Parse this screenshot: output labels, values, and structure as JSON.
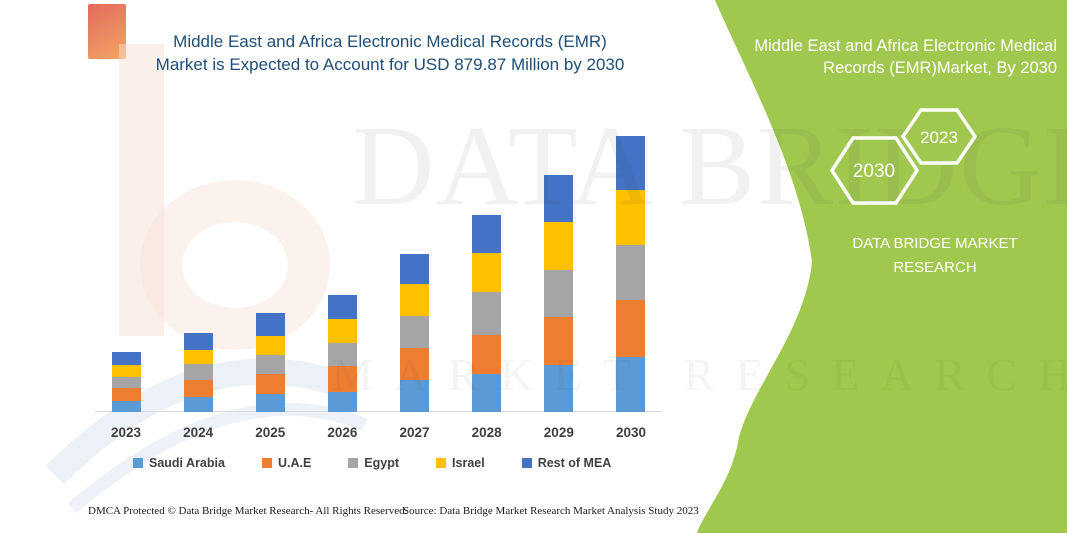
{
  "chart": {
    "title_line1": "Middle East and Africa Electronic Medical Records (EMR)",
    "title_line2": "Market is Expected to Account for USD 879.87 Million by 2030",
    "title_color": "#1F4E79"
  },
  "chart_data": {
    "type": "bar",
    "stacked": true,
    "title": "Middle East and Africa Electronic Medical Records (EMR) Market is Expected to Account for USD 879.87 Million by 2030",
    "unit": "USD Million",
    "categories": [
      "2023",
      "2024",
      "2025",
      "2026",
      "2027",
      "2028",
      "2029",
      "2030"
    ],
    "series": [
      {
        "name": "Saudi Arabia",
        "color": "#5B9BD5",
        "values": [
          35,
          48,
          57,
          64,
          103,
          121,
          150,
          176
        ]
      },
      {
        "name": "U.A.E",
        "color": "#ED7D31",
        "values": [
          41,
          54,
          64,
          83,
          102,
          124,
          153,
          181
        ]
      },
      {
        "name": "Egypt",
        "color": "#A5A5A5",
        "values": [
          36,
          50,
          61,
          73,
          102,
          137,
          150,
          175
        ]
      },
      {
        "name": "Israel",
        "color": "#FFC000",
        "values": [
          38,
          45,
          61,
          77,
          101,
          124,
          153,
          175
        ]
      },
      {
        "name": "Rest of MEA",
        "color": "#4472C4",
        "values": [
          41,
          55,
          73,
          76,
          96,
          122,
          150,
          172.87
        ]
      }
    ],
    "totals": [
      191,
      252,
      316,
      373,
      504,
      628,
      756,
      879.87
    ],
    "value_axis_visible": false,
    "grid": false,
    "legend_position": "bottom",
    "note": "Segment values estimated from bar pixel heights; 2030 total of 879.87 USD Million stated in title."
  },
  "side_panel": {
    "title_line1": "Middle East and Africa Electronic Medical",
    "title_line2": "Records (EMR)Market, By 2030",
    "hexagon_large_label": "2030",
    "hexagon_small_label": "2023",
    "brand_line1": "DATA BRIDGE MARKET",
    "brand_line2": "RESEARCH",
    "panel_color": "#A0C84E"
  },
  "watermark": {
    "line1": "DATA BRIDGE",
    "line2": "MARKET RESEARCH"
  },
  "footer": {
    "dmca": "DMCA Protected © Data Bridge Market Research-  All Rights Reserved.",
    "source": "Source: Data Bridge Market Research  Market Analysis Study 2023"
  }
}
